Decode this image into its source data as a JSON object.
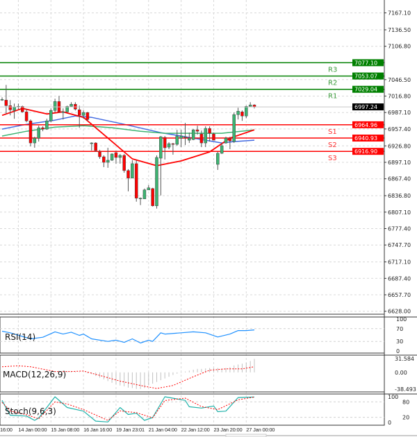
{
  "chart_data": {
    "type": "candlestick",
    "ylim": [
      6622.6,
      7190.4
    ],
    "y_ticks": [
      "7167.10",
      "7136.50",
      "7106.80",
      "7046.50",
      "7016.80",
      "6987.10",
      "6957.40",
      "6926.80",
      "6897.10",
      "6867.40",
      "6836.80",
      "6807.10",
      "6777.40",
      "6747.70",
      "6717.10",
      "6687.40",
      "6657.70",
      "6628.00"
    ],
    "x_labels": [
      {
        "bar": -4,
        "label": "16:00"
      },
      {
        "bar": 4,
        "label": "14 Jan 00:00"
      },
      {
        "bar": 12,
        "label": "15 Jan 08:00"
      },
      {
        "bar": 20,
        "label": "16 Jan 16:00"
      },
      {
        "bar": 28,
        "label": "19 Jan 23:01"
      },
      {
        "bar": 36,
        "label": "21 Jan 04:00"
      },
      {
        "bar": 44,
        "label": "22 Jan 12:00"
      },
      {
        "bar": 52,
        "label": "23 Jan 20:00"
      },
      {
        "bar": 60,
        "label": "27 Jan 00:00"
      }
    ],
    "grid": true,
    "colors": {
      "up": "#3cb371",
      "down": "#ff0000",
      "resistance": "#008000",
      "support": "#ff0000",
      "ma_fast": "#ff0000",
      "ma_mid": "#3cb371",
      "ma_slow": "#4169e1",
      "rsi": "#1e90ff",
      "stoch_main": "#20b2aa",
      "stoch_signal": "#ff0000",
      "macd_signal": "#ff0000",
      "macd_hist": "#c0c0c0"
    },
    "candles_ohlc": [
      [
        7010.7,
        7014.5,
        7008.2,
        7010.7
      ],
      [
        7009.5,
        7037.0,
        6984.5,
        6999.5
      ],
      [
        6999.5,
        7009.5,
        6982.0,
        6992.0
      ],
      [
        6990.8,
        7003.2,
        6975.8,
        6997.0
      ],
      [
        6998.2,
        7003.2,
        6993.2,
        6998.2
      ],
      [
        6998.2,
        6999.5,
        6987.0,
        6988.3
      ],
      [
        6988.3,
        6993.2,
        6969.5,
        6972.0
      ],
      [
        6972.0,
        6974.5,
        6925.8,
        6932.1
      ],
      [
        6932.1,
        6943.3,
        6923.4,
        6940.8
      ],
      [
        6940.8,
        6963.3,
        6934.6,
        6959.6
      ],
      [
        6959.6,
        6962.1,
        6953.3,
        6957.1
      ],
      [
        6957.1,
        6975.8,
        6955.8,
        6972.0
      ],
      [
        6972.0,
        6994.5,
        6969.5,
        6990.8
      ],
      [
        6990.8,
        7012.0,
        6987.0,
        7007.0
      ],
      [
        7007.0,
        7017.0,
        6987.0,
        6988.3
      ],
      [
        6988.3,
        6994.5,
        6974.5,
        6988.3
      ],
      [
        6988.3,
        6999.5,
        6987.0,
        6998.2
      ],
      [
        6998.2,
        7005.7,
        6997.0,
        7002.0
      ],
      [
        7002.0,
        7005.7,
        6990.8,
        6993.2
      ],
      [
        6992.0,
        6999.5,
        6959.6,
        6982.0
      ],
      [
        6982.0,
        6990.8,
        6975.8,
        6987.0
      ],
      [
        6987.0,
        6988.3,
        6972.0,
        6974.5
      ],
      [
        6930.8,
        6933.3,
        6918.4,
        6932.1
      ],
      [
        6932.1,
        6933.3,
        6915.9,
        6918.4
      ],
      [
        6915.9,
        6919.6,
        6903.4,
        6907.1
      ],
      [
        6907.1,
        6909.6,
        6888.4,
        6897.1
      ],
      [
        6897.1,
        6923.4,
        6887.2,
        6900.9
      ],
      [
        6900.9,
        6913.4,
        6899.6,
        6912.1
      ],
      [
        6914.6,
        6915.9,
        6894.7,
        6905.9
      ],
      [
        6905.9,
        6912.1,
        6894.7,
        6909.6
      ],
      [
        6909.6,
        6912.1,
        6878.4,
        6882.2
      ],
      [
        6882.2,
        6884.7,
        6844.7,
        6868.5
      ],
      [
        6868.5,
        6900.9,
        6868.5,
        6894.7
      ],
      [
        6894.7,
        6900.9,
        6826.0,
        6832.3
      ],
      [
        6832.3,
        6833.5,
        6819.8,
        6832.3
      ],
      [
        6831.0,
        6849.7,
        6831.0,
        6847.2
      ],
      [
        6847.2,
        6856.0,
        6847.2,
        6851.0
      ],
      [
        6849.7,
        6851.0,
        6817.3,
        6818.5
      ],
      [
        6818.5,
        6909.6,
        6813.5,
        6905.9
      ],
      [
        6904.6,
        6944.6,
        6837.3,
        6943.3
      ],
      [
        6942.1,
        6944.6,
        6902.1,
        6923.4
      ],
      [
        6924.6,
        6933.3,
        6920.9,
        6930.8
      ],
      [
        6930.8,
        6932.1,
        6910.9,
        6929.6
      ],
      [
        6929.6,
        6955.8,
        6927.1,
        6944.6
      ],
      [
        6940.8,
        6955.8,
        6924.6,
        6944.6
      ],
      [
        6943.3,
        6968.3,
        6928.3,
        6943.3
      ],
      [
        6937.1,
        6950.8,
        6932.1,
        6940.8
      ],
      [
        6938.3,
        6957.1,
        6937.1,
        6955.8
      ],
      [
        6955.8,
        6963.3,
        6947.1,
        6953.3
      ],
      [
        6948.3,
        6954.6,
        6924.6,
        6932.1
      ],
      [
        6932.1,
        6962.1,
        6924.6,
        6958.3
      ],
      [
        6958.3,
        6962.1,
        6934.6,
        6949.6
      ],
      [
        6948.3,
        6950.8,
        6937.1,
        6937.1
      ],
      [
        6893.4,
        6915.9,
        6883.4,
        6913.4
      ],
      [
        6913.4,
        6932.1,
        6912.1,
        6927.1
      ],
      [
        6932.1,
        6943.3,
        6930.8,
        6940.8
      ],
      [
        6940.8,
        6943.3,
        6920.9,
        6935.8
      ],
      [
        6934.6,
        6987.0,
        6932.1,
        6983.3
      ],
      [
        6983.3,
        6995.7,
        6974.5,
        6989.5
      ],
      [
        6988.3,
        6990.8,
        6972.0,
        6980.8
      ],
      [
        6980.8,
        6999.5,
        6977.0,
        6998.2
      ],
      [
        6998.2,
        7005.7,
        6998.2,
        7000.7
      ],
      [
        7000.7,
        7002.0,
        6994.5,
        6997.0
      ]
    ],
    "moving_averages": {
      "fast": [
        [
          0,
          6982.0
        ],
        [
          5,
          6994.5
        ],
        [
          11,
          6984.5
        ],
        [
          15,
          6988.3
        ],
        [
          20,
          6978.3
        ],
        [
          25,
          6947.1
        ],
        [
          32,
          6903.4
        ],
        [
          38,
          6890.9
        ],
        [
          44,
          6899.6
        ],
        [
          51,
          6915.9
        ],
        [
          56,
          6940.8
        ],
        [
          62,
          6955.8
        ]
      ],
      "mid": [
        [
          0,
          6944.6
        ],
        [
          6,
          6953.3
        ],
        [
          13,
          6960.8
        ],
        [
          20,
          6963.3
        ],
        [
          27,
          6959.6
        ],
        [
          34,
          6953.3
        ],
        [
          40,
          6949.6
        ],
        [
          47,
          6949.6
        ],
        [
          54,
          6949.6
        ],
        [
          62,
          6955.8
        ]
      ],
      "slow": [
        [
          0,
          6957.1
        ],
        [
          6,
          6965.8
        ],
        [
          13,
          6973.3
        ],
        [
          18,
          6980.8
        ],
        [
          22,
          6978.3
        ],
        [
          30,
          6965.8
        ],
        [
          39,
          6950.8
        ],
        [
          47,
          6940.8
        ],
        [
          54,
          6932.1
        ],
        [
          57,
          6934.6
        ],
        [
          62,
          6937.1
        ]
      ]
    },
    "levels": [
      {
        "label": "R3",
        "value": "7077.10",
        "kind": "resistance"
      },
      {
        "label": "R2",
        "value": "7053.07",
        "kind": "resistance"
      },
      {
        "label": "R1",
        "value": "7029.04",
        "kind": "resistance"
      },
      {
        "label": "S1",
        "value": "6964.96",
        "kind": "support"
      },
      {
        "label": "S2",
        "value": "6940.93",
        "kind": "support"
      },
      {
        "label": "S3",
        "value": "6916.90",
        "kind": "support"
      }
    ],
    "current_price": "6997.24",
    "rsi": {
      "label": "RSI(14)",
      "ticks": [
        "100",
        "70",
        "30",
        "0"
      ],
      "points": [
        [
          0,
          62
        ],
        [
          2,
          57
        ],
        [
          7,
          38
        ],
        [
          10,
          43
        ],
        [
          13,
          60
        ],
        [
          15,
          53
        ],
        [
          17,
          59
        ],
        [
          19,
          49
        ],
        [
          20,
          53
        ],
        [
          22,
          38
        ],
        [
          26,
          30
        ],
        [
          28,
          34
        ],
        [
          30,
          27
        ],
        [
          32,
          38
        ],
        [
          34,
          25
        ],
        [
          36,
          34
        ],
        [
          37,
          30
        ],
        [
          39,
          57
        ],
        [
          40,
          53
        ],
        [
          44,
          57
        ],
        [
          47,
          60
        ],
        [
          50,
          57
        ],
        [
          53,
          44
        ],
        [
          56,
          53
        ],
        [
          58,
          64
        ],
        [
          60,
          64
        ],
        [
          62,
          66
        ]
      ]
    },
    "macd": {
      "label": "MACD(12,26,9)",
      "ticks": [
        "31.584",
        "0.00",
        "-38.493"
      ],
      "range": [
        -38.493,
        31.584
      ],
      "histogram": [
        2,
        2,
        1,
        1,
        0,
        0,
        -1,
        -1,
        0,
        1,
        1,
        2,
        3,
        3,
        4,
        4,
        3,
        3,
        2,
        1,
        0,
        -2,
        -4,
        -8,
        -12,
        -16,
        -20,
        -24,
        -27,
        -30,
        -32,
        -35,
        -36,
        -38,
        -38,
        -36,
        -30,
        -26,
        -22,
        -18,
        -14,
        -10,
        -6,
        -3,
        -1,
        2,
        4,
        6,
        8,
        8,
        9,
        10,
        10,
        10,
        9,
        10,
        12,
        16,
        18,
        20,
        22,
        26,
        31
      ],
      "signal": [
        [
          0,
          13
        ],
        [
          4,
          15
        ],
        [
          7,
          13
        ],
        [
          13,
          2
        ],
        [
          17,
          2
        ],
        [
          20,
          3
        ],
        [
          24,
          -7
        ],
        [
          29,
          -20
        ],
        [
          34,
          -30
        ],
        [
          38,
          -37
        ],
        [
          42,
          -30
        ],
        [
          47,
          -10
        ],
        [
          51,
          5
        ],
        [
          55,
          8
        ],
        [
          59,
          8
        ],
        [
          62,
          13
        ]
      ]
    },
    "stoch": {
      "label": "Stoch(9,6,3)",
      "ticks": [
        "100",
        "80",
        "20",
        "0"
      ],
      "main": [
        [
          0,
          86
        ],
        [
          1,
          56
        ],
        [
          2,
          28
        ],
        [
          6,
          25
        ],
        [
          8,
          8
        ],
        [
          9,
          17
        ],
        [
          13,
          100
        ],
        [
          16,
          58
        ],
        [
          20,
          44
        ],
        [
          23,
          5
        ],
        [
          26,
          2
        ],
        [
          29,
          58
        ],
        [
          31,
          31
        ],
        [
          33,
          36
        ],
        [
          35,
          8
        ],
        [
          37,
          19
        ],
        [
          40,
          100
        ],
        [
          45,
          86
        ],
        [
          46,
          61
        ],
        [
          49,
          56
        ],
        [
          52,
          64
        ],
        [
          53,
          42
        ],
        [
          55,
          44
        ],
        [
          58,
          97
        ],
        [
          62,
          99
        ]
      ],
      "signal": [
        [
          0,
          78
        ],
        [
          2,
          45
        ],
        [
          6,
          30
        ],
        [
          9,
          14
        ],
        [
          13,
          80
        ],
        [
          16,
          72
        ],
        [
          20,
          50
        ],
        [
          26,
          8
        ],
        [
          29,
          45
        ],
        [
          33,
          38
        ],
        [
          37,
          18
        ],
        [
          40,
          85
        ],
        [
          45,
          95
        ],
        [
          49,
          62
        ],
        [
          53,
          50
        ],
        [
          58,
          88
        ],
        [
          62,
          99
        ]
      ]
    }
  }
}
